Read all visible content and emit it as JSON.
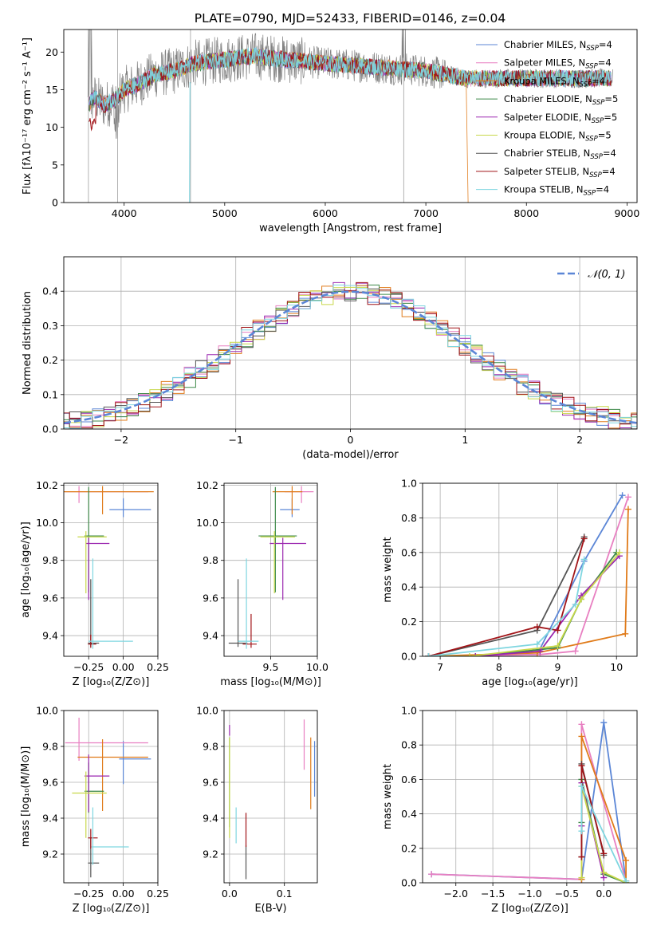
{
  "figure": {
    "title": "PLATE=0790, MJD=52433, FIBERID=0146, z=0.04"
  },
  "colors": {
    "series": [
      "#5b86d6",
      "#e87fc1",
      "#e07b1a",
      "#3f8a4a",
      "#9b27b0",
      "#c8d84a",
      "#555555",
      "#a11418",
      "#7fd6e0"
    ]
  },
  "chart_data": [
    {
      "id": "spectrum",
      "type": "line",
      "xlabel": "wavelength [Angstrom, rest frame]",
      "ylabel": "Flux [fλ10⁻¹⁷ erg cm⁻² s⁻¹ A⁻¹]",
      "xlim": [
        3400,
        9100
      ],
      "ylim": [
        0,
        23
      ],
      "xticks": [
        4000,
        5000,
        6000,
        7000,
        8000,
        9000
      ],
      "yticks": [
        0,
        5,
        10,
        15,
        20
      ],
      "legend_position": "upper right",
      "legend": [
        {
          "name": "Chabrier MILES, N",
          "sub": "SSP",
          "tail": "=4"
        },
        {
          "name": "Salpeter MILES, N",
          "sub": "SSP",
          "tail": "=4"
        },
        {
          "name": "Kroupa MILES, N",
          "sub": "SSP",
          "tail": "=4"
        },
        {
          "name": "Chabrier ELODIE, N",
          "sub": "SSP",
          "tail": "=5"
        },
        {
          "name": "Salpeter ELODIE, N",
          "sub": "SSP",
          "tail": "=5"
        },
        {
          "name": "Kroupa ELODIE, N",
          "sub": "SSP",
          "tail": "=5"
        },
        {
          "name": "Chabrier STELIB, N",
          "sub": "SSP",
          "tail": "=4"
        },
        {
          "name": "Salpeter STELIB, N",
          "sub": "SSP",
          "tail": "=4"
        },
        {
          "name": "Kroupa STELIB, N",
          "sub": "SSP",
          "tail": "=4"
        }
      ],
      "continuum": {
        "x": [
          3650,
          3700,
          3800,
          3900,
          4000,
          4100,
          4300,
          4500,
          4700,
          5000,
          5300,
          5600,
          6000,
          6500,
          7000,
          7400,
          8000,
          8500,
          8850
        ],
        "y": [
          13,
          14,
          13,
          13.5,
          15,
          15.5,
          17,
          17.5,
          18.5,
          19,
          19.5,
          19,
          18.5,
          18,
          17.5,
          16.5,
          16.5,
          16.5,
          16.5
        ]
      },
      "data_line_color": "#808080"
    },
    {
      "id": "residuals",
      "type": "histogram",
      "xlabel": "(data-model)/error",
      "ylabel": "Normed distribution",
      "xlim": [
        -2.5,
        2.5
      ],
      "ylim": [
        0,
        0.5
      ],
      "xticks": [
        -2,
        -1,
        0,
        1,
        2
      ],
      "yticks": [
        0.0,
        0.1,
        0.2,
        0.3,
        0.4
      ],
      "bin_width": 0.1,
      "legend_position": "upper right",
      "legend": {
        "name": "𝒩(0, 1)"
      },
      "gaussian_color": "#5b86d6"
    },
    {
      "id": "age-vs-z",
      "type": "errorbar",
      "xlabel": "Z [log₁₀(Z/Z⊙)]",
      "ylabel": "age  [log₁₀(age/yr)]",
      "xlim": [
        -0.43,
        0.25
      ],
      "ylim": [
        9.29,
        10.21
      ],
      "xticks": [
        -0.25,
        0.0,
        0.25
      ],
      "xticklabels": [
        "−0.25",
        "0.00",
        "0.25"
      ],
      "yticks": [
        9.4,
        9.6,
        9.8,
        10.0,
        10.2
      ],
      "points": [
        {
          "x": 0.0,
          "y": 10.07,
          "xerr": [
            0.1,
            0.2
          ],
          "yerr": [
            0.04,
            0.06
          ]
        },
        {
          "x": -0.32,
          "y": 10.165,
          "xerr": [
            0.1,
            0.5
          ],
          "yerr": [
            0.06,
            0.03
          ]
        },
        {
          "x": -0.15,
          "y": 10.165,
          "xerr": [
            0.28,
            0.37
          ],
          "yerr": [
            0.12,
            0.03
          ]
        },
        {
          "x": -0.25,
          "y": 9.93,
          "xerr": [
            0.03,
            0.11
          ],
          "yerr": [
            0.3,
            0.26
          ]
        },
        {
          "x": -0.25,
          "y": 9.89,
          "xerr": [
            0.02,
            0.15
          ],
          "yerr": [
            0.3,
            0.03
          ]
        },
        {
          "x": -0.27,
          "y": 9.925,
          "xerr": [
            0.06,
            0.15
          ],
          "yerr": [
            0.3,
            0.03
          ]
        },
        {
          "x": -0.235,
          "y": 9.36,
          "xerr": [
            0.02,
            0.06
          ],
          "yerr": [
            0.02,
            0.34
          ]
        },
        {
          "x": -0.235,
          "y": 9.355,
          "xerr": [
            0.02,
            0.04
          ],
          "yerr": [
            0.02,
            0.05
          ]
        },
        {
          "x": -0.22,
          "y": 9.37,
          "xerr": [
            0.03,
            0.29
          ],
          "yerr": [
            0.04,
            0.44
          ]
        }
      ]
    },
    {
      "id": "age-vs-mass",
      "type": "errorbar",
      "xlabel": "mass [log₁₀(M/M⊙)]",
      "ylabel": "",
      "xlim": [
        9.0,
        10.0
      ],
      "ylim": [
        9.29,
        10.21
      ],
      "xticks": [
        9.5,
        10.0
      ],
      "xticklabels": [
        "9.5",
        "10.0"
      ],
      "yticks": [
        9.4,
        9.6,
        9.8,
        10.0,
        10.2
      ],
      "points": [
        {
          "x": 9.73,
          "y": 10.07,
          "xerr": [
            0.13,
            0.08
          ],
          "yerr": [
            0.04,
            0.06
          ]
        },
        {
          "x": 9.83,
          "y": 10.165,
          "xerr": [
            0.18,
            0.13
          ],
          "yerr": [
            0.06,
            0.03
          ]
        },
        {
          "x": 9.73,
          "y": 10.165,
          "xerr": [
            0.21,
            0.11
          ],
          "yerr": [
            0.12,
            0.03
          ]
        },
        {
          "x": 9.55,
          "y": 9.93,
          "xerr": [
            0.18,
            0.23
          ],
          "yerr": [
            0.3,
            0.26
          ]
        },
        {
          "x": 9.63,
          "y": 9.89,
          "xerr": [
            0.14,
            0.25
          ],
          "yerr": [
            0.3,
            0.03
          ]
        },
        {
          "x": 9.54,
          "y": 9.925,
          "xerr": [
            0.15,
            0.22
          ],
          "yerr": [
            0.3,
            0.03
          ]
        },
        {
          "x": 9.15,
          "y": 9.36,
          "xerr": [
            0.1,
            0.1
          ],
          "yerr": [
            0.02,
            0.34
          ]
        },
        {
          "x": 9.29,
          "y": 9.355,
          "xerr": [
            0.09,
            0.06
          ],
          "yerr": [
            0.02,
            0.16
          ]
        },
        {
          "x": 9.24,
          "y": 9.37,
          "xerr": [
            0.09,
            0.13
          ],
          "yerr": [
            0.04,
            0.44
          ]
        }
      ]
    },
    {
      "id": "mass-weight-vs-age",
      "type": "line",
      "xlabel": "age  [log₁₀(age/yr)]",
      "ylabel": "mass weight",
      "xlim": [
        6.7,
        10.35
      ],
      "ylim": [
        0,
        1
      ],
      "xticks": [
        7,
        8,
        9,
        10
      ],
      "yticks": [
        0.0,
        0.2,
        0.4,
        0.6,
        0.8,
        1.0
      ],
      "series": [
        {
          "x": [
            6.8,
            8.65,
            9.45,
            10.1
          ],
          "y": [
            0.0,
            0.01,
            0.55,
            0.93
          ]
        },
        {
          "x": [
            6.8,
            8.7,
            9.3,
            10.2
          ],
          "y": [
            0.0,
            0.01,
            0.03,
            0.92
          ]
        },
        {
          "x": [
            6.8,
            8.65,
            10.15,
            10.2
          ],
          "y": [
            0.0,
            0.02,
            0.13,
            0.85
          ]
        },
        {
          "x": [
            6.8,
            7.6,
            9.0,
            9.4,
            10.0
          ],
          "y": [
            0.0,
            0.0,
            0.05,
            0.33,
            0.6
          ]
        },
        {
          "x": [
            6.8,
            7.6,
            8.7,
            9.4,
            10.05
          ],
          "y": [
            0.0,
            0.0,
            0.03,
            0.35,
            0.58
          ]
        },
        {
          "x": [
            6.8,
            7.5,
            9.0,
            9.4,
            10.05
          ],
          "y": [
            0.0,
            0.0,
            0.06,
            0.33,
            0.6
          ]
        },
        {
          "x": [
            6.8,
            8.65,
            9.45
          ],
          "y": [
            0.0,
            0.15,
            0.69
          ]
        },
        {
          "x": [
            6.8,
            8.65,
            9.0,
            9.45
          ],
          "y": [
            0.0,
            0.17,
            0.15,
            0.68
          ]
        },
        {
          "x": [
            6.8,
            8.65,
            9.3,
            9.45
          ],
          "y": [
            0.0,
            0.07,
            0.3,
            0.56
          ]
        }
      ]
    },
    {
      "id": "mass-vs-z",
      "type": "errorbar",
      "xlabel": "Z [log₁₀(Z/Z⊙)]",
      "ylabel": "mass [log₁₀(M/M⊙)]",
      "xlim": [
        -0.43,
        0.25
      ],
      "ylim": [
        9.04,
        10.0
      ],
      "xticks": [
        -0.25,
        0.0,
        0.25
      ],
      "xticklabels": [
        "−0.25",
        "0.00",
        "0.25"
      ],
      "yticks": [
        9.2,
        9.4,
        9.6,
        9.8,
        10.0
      ],
      "points": [
        {
          "x": 0.0,
          "y": 9.73,
          "xerr": [
            0.03,
            0.2
          ],
          "yerr": [
            0.14,
            0.1
          ]
        },
        {
          "x": -0.32,
          "y": 9.82,
          "xerr": [
            0.1,
            0.5
          ],
          "yerr": [
            0.1,
            0.14
          ]
        },
        {
          "x": -0.15,
          "y": 9.74,
          "xerr": [
            0.18,
            0.33
          ],
          "yerr": [
            0.3,
            0.1
          ]
        },
        {
          "x": -0.25,
          "y": 9.55,
          "xerr": [
            0.03,
            0.11
          ],
          "yerr": [
            0.12,
            0.16
          ]
        },
        {
          "x": -0.25,
          "y": 9.635,
          "xerr": [
            0.03,
            0.15
          ],
          "yerr": [
            0.2,
            0.12
          ]
        },
        {
          "x": -0.27,
          "y": 9.54,
          "xerr": [
            0.1,
            0.15
          ],
          "yerr": [
            0.25,
            0.12
          ]
        },
        {
          "x": -0.235,
          "y": 9.15,
          "xerr": [
            0.02,
            0.06
          ],
          "yerr": [
            0.08,
            0.14
          ]
        },
        {
          "x": -0.235,
          "y": 9.29,
          "xerr": [
            0.02,
            0.05
          ],
          "yerr": [
            0.06,
            0.05
          ]
        },
        {
          "x": -0.22,
          "y": 9.24,
          "xerr": [
            0.01,
            0.26
          ],
          "yerr": [
            0.1,
            0.22
          ]
        }
      ]
    },
    {
      "id": "mass-vs-ebv",
      "type": "errorbar",
      "xlabel": "E(B-V)",
      "ylabel": "",
      "xlim": [
        -0.01,
        0.16
      ],
      "ylim": [
        9.04,
        10.0
      ],
      "xticks": [
        0.0,
        0.1
      ],
      "xticklabels": [
        "0.0",
        "0.1"
      ],
      "yticks": [
        9.2,
        9.4,
        9.6,
        9.8,
        10.0
      ],
      "points": [
        {
          "x": 0.155,
          "y": 9.7,
          "xerr": [
            0,
            0
          ],
          "yerr": [
            0.18,
            0.13
          ]
        },
        {
          "x": 0.136,
          "y": 9.8,
          "xerr": [
            0,
            0
          ],
          "yerr": [
            0.13,
            0.15
          ]
        },
        {
          "x": 0.148,
          "y": 9.67,
          "xerr": [
            0,
            0
          ],
          "yerr": [
            0.22,
            0.18
          ]
        },
        {
          "x": 0.0,
          "y": 9.55,
          "xerr": [
            0,
            0
          ],
          "yerr": [
            0.2,
            0.3
          ]
        },
        {
          "x": 0.0,
          "y": 9.88,
          "xerr": [
            0,
            0
          ],
          "yerr": [
            0.02,
            0.04
          ]
        },
        {
          "x": 0.0,
          "y": 9.55,
          "xerr": [
            0,
            0
          ],
          "yerr": [
            0.26,
            0.3
          ]
        },
        {
          "x": 0.03,
          "y": 9.2,
          "xerr": [
            0,
            0
          ],
          "yerr": [
            0.14,
            0.05
          ]
        },
        {
          "x": 0.03,
          "y": 9.3,
          "xerr": [
            0,
            0
          ],
          "yerr": [
            0.06,
            0.13
          ]
        },
        {
          "x": 0.012,
          "y": 9.32,
          "xerr": [
            0,
            0
          ],
          "yerr": [
            0.06,
            0.14
          ]
        }
      ]
    },
    {
      "id": "mass-weight-vs-z",
      "type": "line",
      "xlabel": "Z [log₁₀(Z/Z⊙)]",
      "ylabel": "mass weight",
      "xlim": [
        -2.45,
        0.45
      ],
      "ylim": [
        0,
        1
      ],
      "xticks": [
        -2.0,
        -1.5,
        -1.0,
        -0.5,
        0.0
      ],
      "xticklabels": [
        "−2.0",
        "−1.5",
        "−1.0",
        "−0.5",
        "0.0"
      ],
      "yticks": [
        0.0,
        0.2,
        0.4,
        0.6,
        0.8,
        1.0
      ],
      "series": [
        {
          "x": [
            -2.33,
            -0.3,
            0.0,
            0.3
          ],
          "y": [
            0.05,
            0.02,
            0.93,
            0.01
          ]
        },
        {
          "x": [
            -2.33,
            -0.3,
            -0.3,
            0.3
          ],
          "y": [
            0.05,
            0.02,
            0.92,
            0.01
          ]
        },
        {
          "x": [
            -0.3,
            -0.3,
            0.3,
            0.3
          ],
          "y": [
            0.02,
            0.85,
            0.13,
            0.01
          ]
        },
        {
          "x": [
            -0.3,
            -0.3,
            0.0,
            0.3
          ],
          "y": [
            0.35,
            0.6,
            0.05,
            0.0
          ]
        },
        {
          "x": [
            -0.3,
            -0.3,
            0.0
          ],
          "y": [
            0.33,
            0.58,
            0.03
          ]
        },
        {
          "x": [
            -0.3,
            -0.3,
            0.0,
            0.3
          ],
          "y": [
            0.03,
            0.56,
            0.06,
            0.0
          ]
        },
        {
          "x": [
            -0.3,
            -0.3,
            0.0
          ],
          "y": [
            0.15,
            0.69,
            0.16
          ]
        },
        {
          "x": [
            -0.3,
            -0.3,
            0.0
          ],
          "y": [
            0.15,
            0.68,
            0.17
          ]
        },
        {
          "x": [
            -0.3,
            -0.3,
            0.3
          ],
          "y": [
            0.3,
            0.56,
            0.01
          ]
        }
      ]
    }
  ]
}
